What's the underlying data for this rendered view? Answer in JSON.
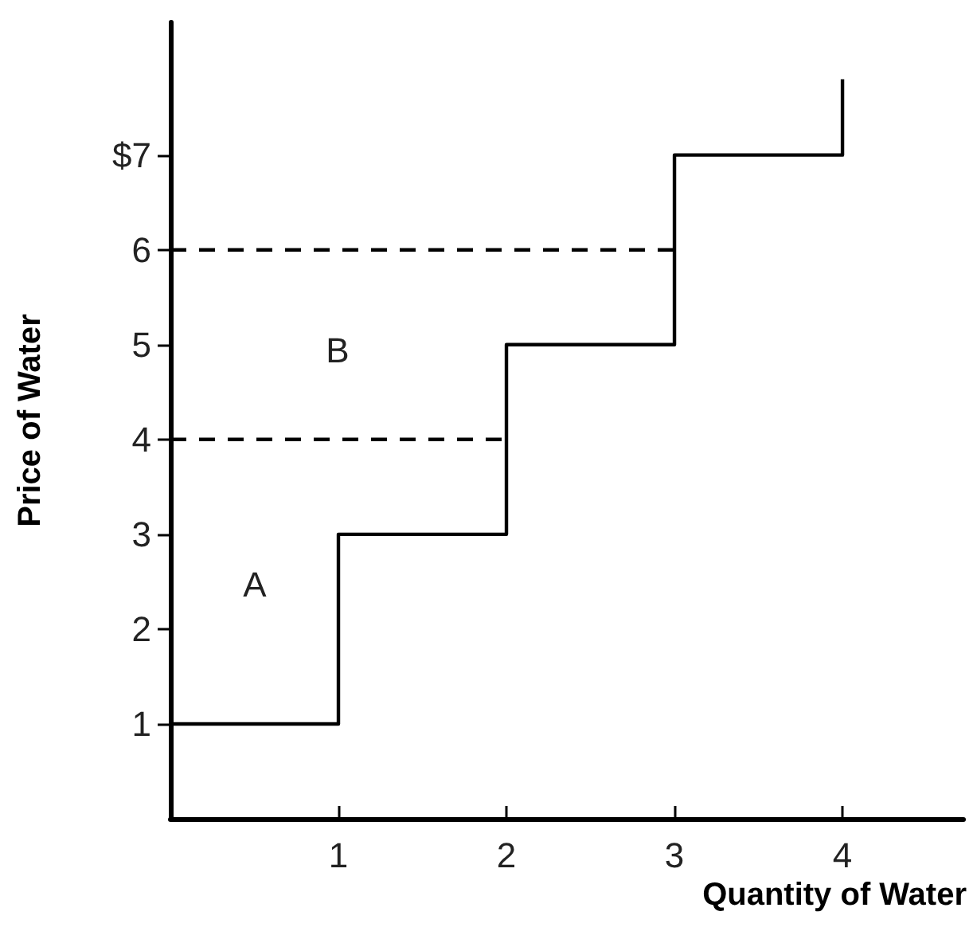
{
  "chart_data": {
    "type": "step",
    "xlabel": "Quantity of Water",
    "ylabel": "Price of Water",
    "series": [
      {
        "color": "#000000",
        "x": [
          0,
          1,
          2,
          3,
          4
        ],
        "values": [
          1,
          3,
          5,
          7,
          7.8
        ],
        "line_style": "solid"
      },
      {
        "type": "line",
        "color": "#000000",
        "x": [
          0,
          2
        ],
        "values": [
          4,
          4
        ],
        "line_style": "dashed"
      },
      {
        "type": "line",
        "color": "#000000",
        "x": [
          0,
          3
        ],
        "values": [
          6,
          6
        ],
        "line_style": "dashed"
      }
    ],
    "xlim": [
      0,
      4.72
    ],
    "xticks": [
      1,
      2,
      3,
      4
    ],
    "ylim": [
      0,
      8.4
    ],
    "yticks": [
      1,
      2,
      3,
      4,
      5,
      6,
      {
        "value": 7,
        "label": "$7"
      }
    ],
    "annotations": [
      "A",
      "B"
    ],
    "grid": false,
    "marker": "none"
  }
}
